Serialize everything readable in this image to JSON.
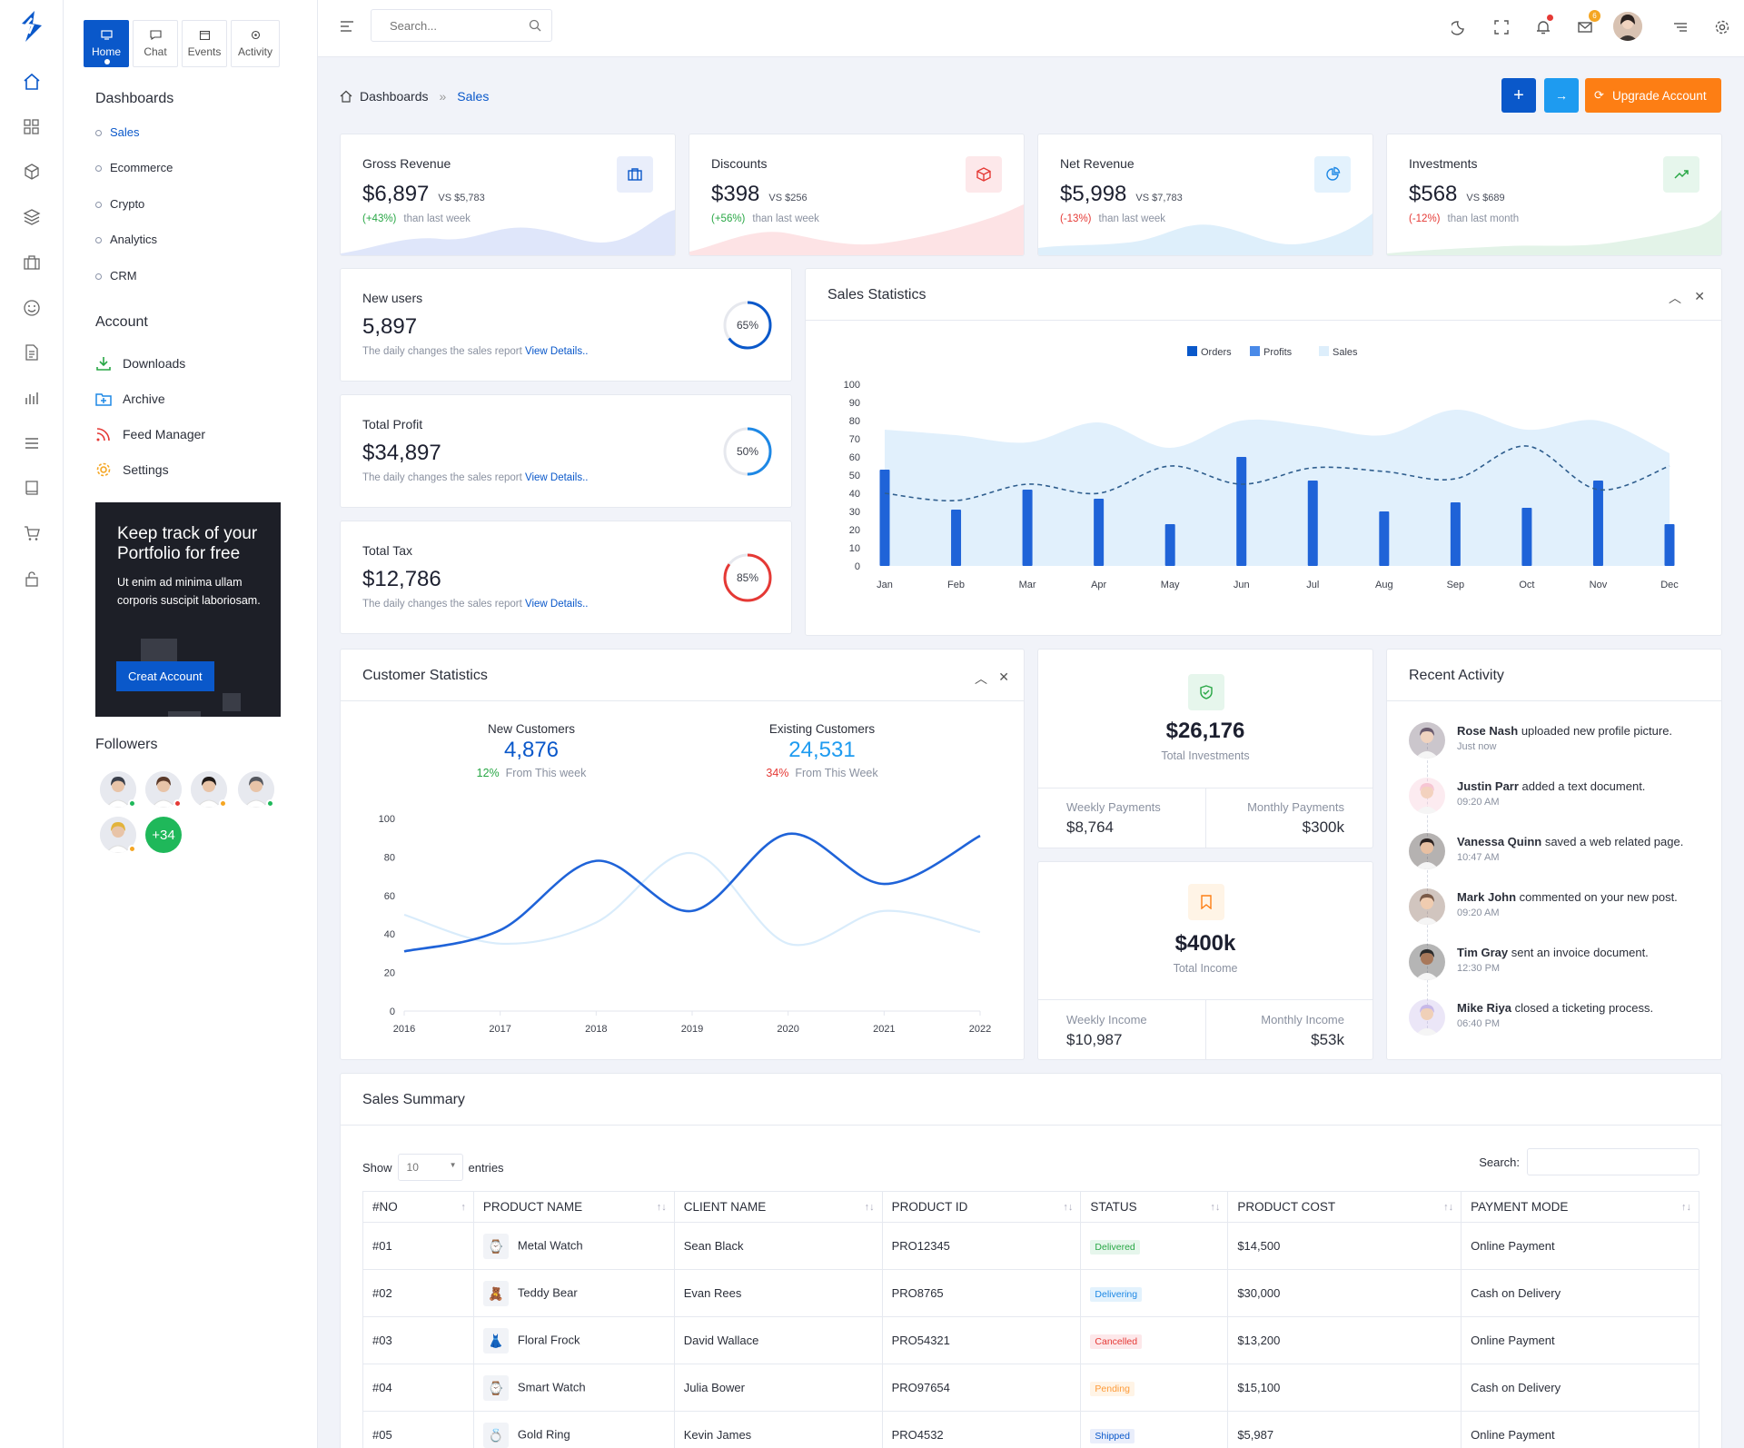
{
  "colors": {
    "primary": "#0a58ca",
    "blue": "#1e88e5",
    "orange": "#fd7e14",
    "success": "#28a745",
    "danger": "#e53935"
  },
  "rail": {
    "icons": [
      "home-icon",
      "grid-icon",
      "cube-icon",
      "layers-icon",
      "briefcase-icon",
      "smile-icon",
      "file-icon",
      "bar-chart-icon",
      "list-icon",
      "book-icon",
      "cart-icon",
      "lock-icon"
    ]
  },
  "sidebar": {
    "tabs": [
      {
        "label": "Home",
        "icon": "monitor-icon"
      },
      {
        "label": "Chat",
        "icon": "message-icon"
      },
      {
        "label": "Events",
        "icon": "calendar-icon"
      },
      {
        "label": "Activity",
        "icon": "activity-icon"
      }
    ],
    "dashboards_title": "Dashboards",
    "dashboards": [
      "Sales",
      "Ecommerce",
      "Crypto",
      "Analytics",
      "CRM"
    ],
    "account_title": "Account",
    "account": [
      "Downloads",
      "Archive",
      "Feed Manager",
      "Settings"
    ],
    "promo": {
      "title": "Keep track of your Portfolio for free",
      "desc": "Ut enim ad minima ullam corporis suscipit laboriosam.",
      "button": "Creat Account"
    },
    "followers_title": "Followers",
    "followers_more": "+34"
  },
  "header": {
    "search_placeholder": "Search...",
    "mail_count": "6"
  },
  "breadcrumb": {
    "root": "Dashboards",
    "sep": "»",
    "current": "Sales"
  },
  "actions": {
    "add": "+",
    "login": "→",
    "upgrade": "Upgrade Account"
  },
  "kpis": [
    {
      "label": "Gross Revenue",
      "value": "$6,897",
      "vs": "VS $5,783",
      "change": "(+43%)",
      "period": "than last week",
      "icon": "briefcase-icon"
    },
    {
      "label": "Discounts",
      "value": "$398",
      "vs": "VS $256",
      "change": "(+56%)",
      "period": "than last week",
      "icon": "box-icon"
    },
    {
      "label": "Net Revenue",
      "value": "$5,998",
      "vs": "VS $7,783",
      "change": "(-13%)",
      "period": "than last week",
      "icon": "pie-icon"
    },
    {
      "label": "Investments",
      "value": "$568",
      "vs": "VS $689",
      "change": "(-12%)",
      "period": "than last month",
      "icon": "trend-up-icon"
    }
  ],
  "stats": [
    {
      "label": "New users",
      "value": "5,897",
      "desc": "The daily changes the sales report",
      "link": "View Details..",
      "percent": 65,
      "percent_label": "65%"
    },
    {
      "label": "Total Profit",
      "value": "$34,897",
      "desc": "The daily changes the sales report",
      "link": "View Details..",
      "percent": 50,
      "percent_label": "50%"
    },
    {
      "label": "Total Tax",
      "value": "$12,786",
      "desc": "The daily changes the sales report",
      "link": "View Details..",
      "percent": 85,
      "percent_label": "85%"
    }
  ],
  "sales_statistics": {
    "title": "Sales Statistics"
  },
  "customer_statistics": {
    "title": "Customer Statistics",
    "new_label": "New Customers",
    "new_value": "4,876",
    "new_change": "12%",
    "new_period": "From This week",
    "existing_label": "Existing Customers",
    "existing_value": "24,531",
    "existing_change": "34%",
    "existing_period": "From This Week"
  },
  "investments": {
    "value": "$26,176",
    "label": "Total Investments",
    "weekly_label": "Weekly Payments",
    "weekly_value": "$8,764",
    "monthly_label": "Monthly Payments",
    "monthly_value": "$300k"
  },
  "income": {
    "value": "$400k",
    "label": "Total Income",
    "weekly_label": "Weekly Income",
    "weekly_value": "$10,987",
    "monthly_label": "Monthly Income",
    "monthly_value": "$53k"
  },
  "recent_activity": {
    "title": "Recent Activity",
    "items": [
      {
        "name": "Rose Nash",
        "text": "uploaded new profile picture.",
        "time": "Just now"
      },
      {
        "name": "Justin Parr",
        "text": "added a text document.",
        "time": "09:20 AM"
      },
      {
        "name": "Vanessa Quinn",
        "text": "saved a web related page.",
        "time": "10:47 AM"
      },
      {
        "name": "Mark John",
        "text": "commented on your new post.",
        "time": "09:20 AM"
      },
      {
        "name": "Tim Gray",
        "text": "sent an invoice document.",
        "time": "12:30 PM"
      },
      {
        "name": "Mike Riya",
        "text": "closed a ticketing process.",
        "time": "06:40 PM"
      }
    ]
  },
  "sales_summary": {
    "title": "Sales Summary",
    "show_label": "Show",
    "entries_value": "10",
    "entries_label": "entries",
    "search_label": "Search:",
    "columns": [
      "#NO",
      "PRODUCT NAME",
      "CLIENT NAME",
      "PRODUCT ID",
      "STATUS",
      "PRODUCT COST",
      "PAYMENT MODE"
    ],
    "rows": [
      {
        "no": "#01",
        "product": "Metal Watch",
        "icon": "⌚",
        "client": "Sean Black",
        "pid": "PRO12345",
        "status": "Delivered",
        "cost": "$14,500",
        "payment": "Online Payment"
      },
      {
        "no": "#02",
        "product": "Teddy Bear",
        "icon": "🧸",
        "client": "Evan Rees",
        "pid": "PRO8765",
        "status": "Delivering",
        "cost": "$30,000",
        "payment": "Cash on Delivery"
      },
      {
        "no": "#03",
        "product": "Floral Frock",
        "icon": "👗",
        "client": "David Wallace",
        "pid": "PRO54321",
        "status": "Cancelled",
        "cost": "$13,200",
        "payment": "Online Payment"
      },
      {
        "no": "#04",
        "product": "Smart Watch",
        "icon": "⌚",
        "client": "Julia Bower",
        "pid": "PRO97654",
        "status": "Pending",
        "cost": "$15,100",
        "payment": "Cash on Delivery"
      },
      {
        "no": "#05",
        "product": "Gold Ring",
        "icon": "💍",
        "client": "Kevin James",
        "pid": "PRO4532",
        "status": "Shipped",
        "cost": "$5,987",
        "payment": "Online Payment"
      }
    ]
  },
  "chart_data": [
    {
      "type": "bar",
      "title": "Sales Statistics",
      "legend": [
        "Orders",
        "Profits",
        "Sales"
      ],
      "legend_position": "top-center",
      "categories": [
        "Jan",
        "Feb",
        "Mar",
        "Apr",
        "May",
        "Jun",
        "Jul",
        "Aug",
        "Sep",
        "Oct",
        "Nov",
        "Dec"
      ],
      "series": [
        {
          "name": "Orders",
          "type": "bar",
          "values": [
            53,
            31,
            42,
            37,
            23,
            60,
            47,
            30,
            35,
            32,
            47,
            23
          ]
        },
        {
          "name": "Profits",
          "type": "line",
          "style": "dashed",
          "values": [
            40,
            36,
            45,
            40,
            55,
            45,
            54,
            52,
            48,
            66,
            42,
            55
          ]
        },
        {
          "name": "Sales",
          "type": "area",
          "values": [
            75,
            72,
            68,
            79,
            65,
            80,
            77,
            72,
            86,
            75,
            80,
            62
          ]
        }
      ],
      "ylim": [
        0,
        100
      ],
      "yticks": [
        0,
        10,
        20,
        30,
        40,
        50,
        60,
        70,
        80,
        90,
        100
      ],
      "grid": false
    },
    {
      "type": "line",
      "title": "Customer Statistics",
      "x": [
        "2016",
        "2017",
        "2018",
        "2019",
        "2020",
        "2021",
        "2022"
      ],
      "series": [
        {
          "name": "New Customers",
          "values": [
            31,
            42,
            78,
            52,
            92,
            66,
            91
          ]
        },
        {
          "name": "Existing Customers",
          "values": [
            50,
            35,
            46,
            82,
            35,
            52,
            41
          ]
        }
      ],
      "ylim": [
        0,
        100
      ],
      "yticks": [
        0,
        20,
        40,
        60,
        80,
        100
      ],
      "grid": false
    }
  ]
}
